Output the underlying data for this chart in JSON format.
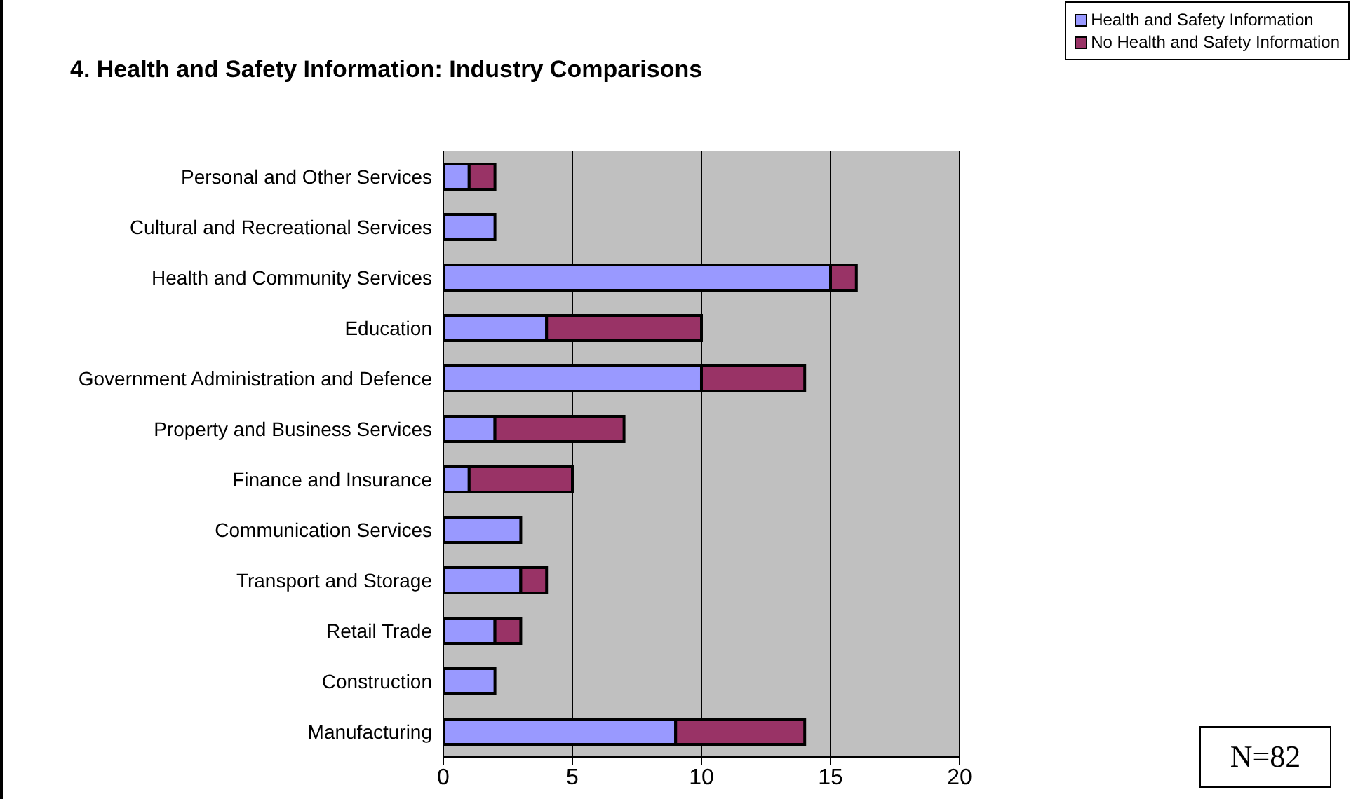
{
  "chart_data": {
    "type": "bar",
    "title": "4. Health and Safety Information: Industry Comparisons",
    "orientation": "horizontal",
    "stacked": true,
    "categories": [
      "Personal and Other Services",
      "Cultural and Recreational Services",
      "Health and Community Services",
      "Education",
      "Government Administration and Defence",
      "Property and Business Services",
      "Finance and Insurance",
      "Communication Services",
      "Transport and Storage",
      "Retail Trade",
      "Construction",
      "Manufacturing"
    ],
    "series": [
      {
        "name": "Health and Safety Information",
        "color": "#9999ff",
        "values": [
          1,
          2,
          15,
          4,
          10,
          2,
          1,
          3,
          3,
          2,
          2,
          9
        ]
      },
      {
        "name": "No Health and Safety Information",
        "color": "#993366",
        "values": [
          1,
          0,
          1,
          6,
          4,
          5,
          4,
          0,
          1,
          1,
          0,
          5
        ]
      }
    ],
    "xlim": [
      0,
      20
    ],
    "xticks": [
      0,
      5,
      10,
      15,
      20
    ],
    "grid": "x",
    "legend": "top right",
    "annotations": [
      "N=82"
    ]
  }
}
